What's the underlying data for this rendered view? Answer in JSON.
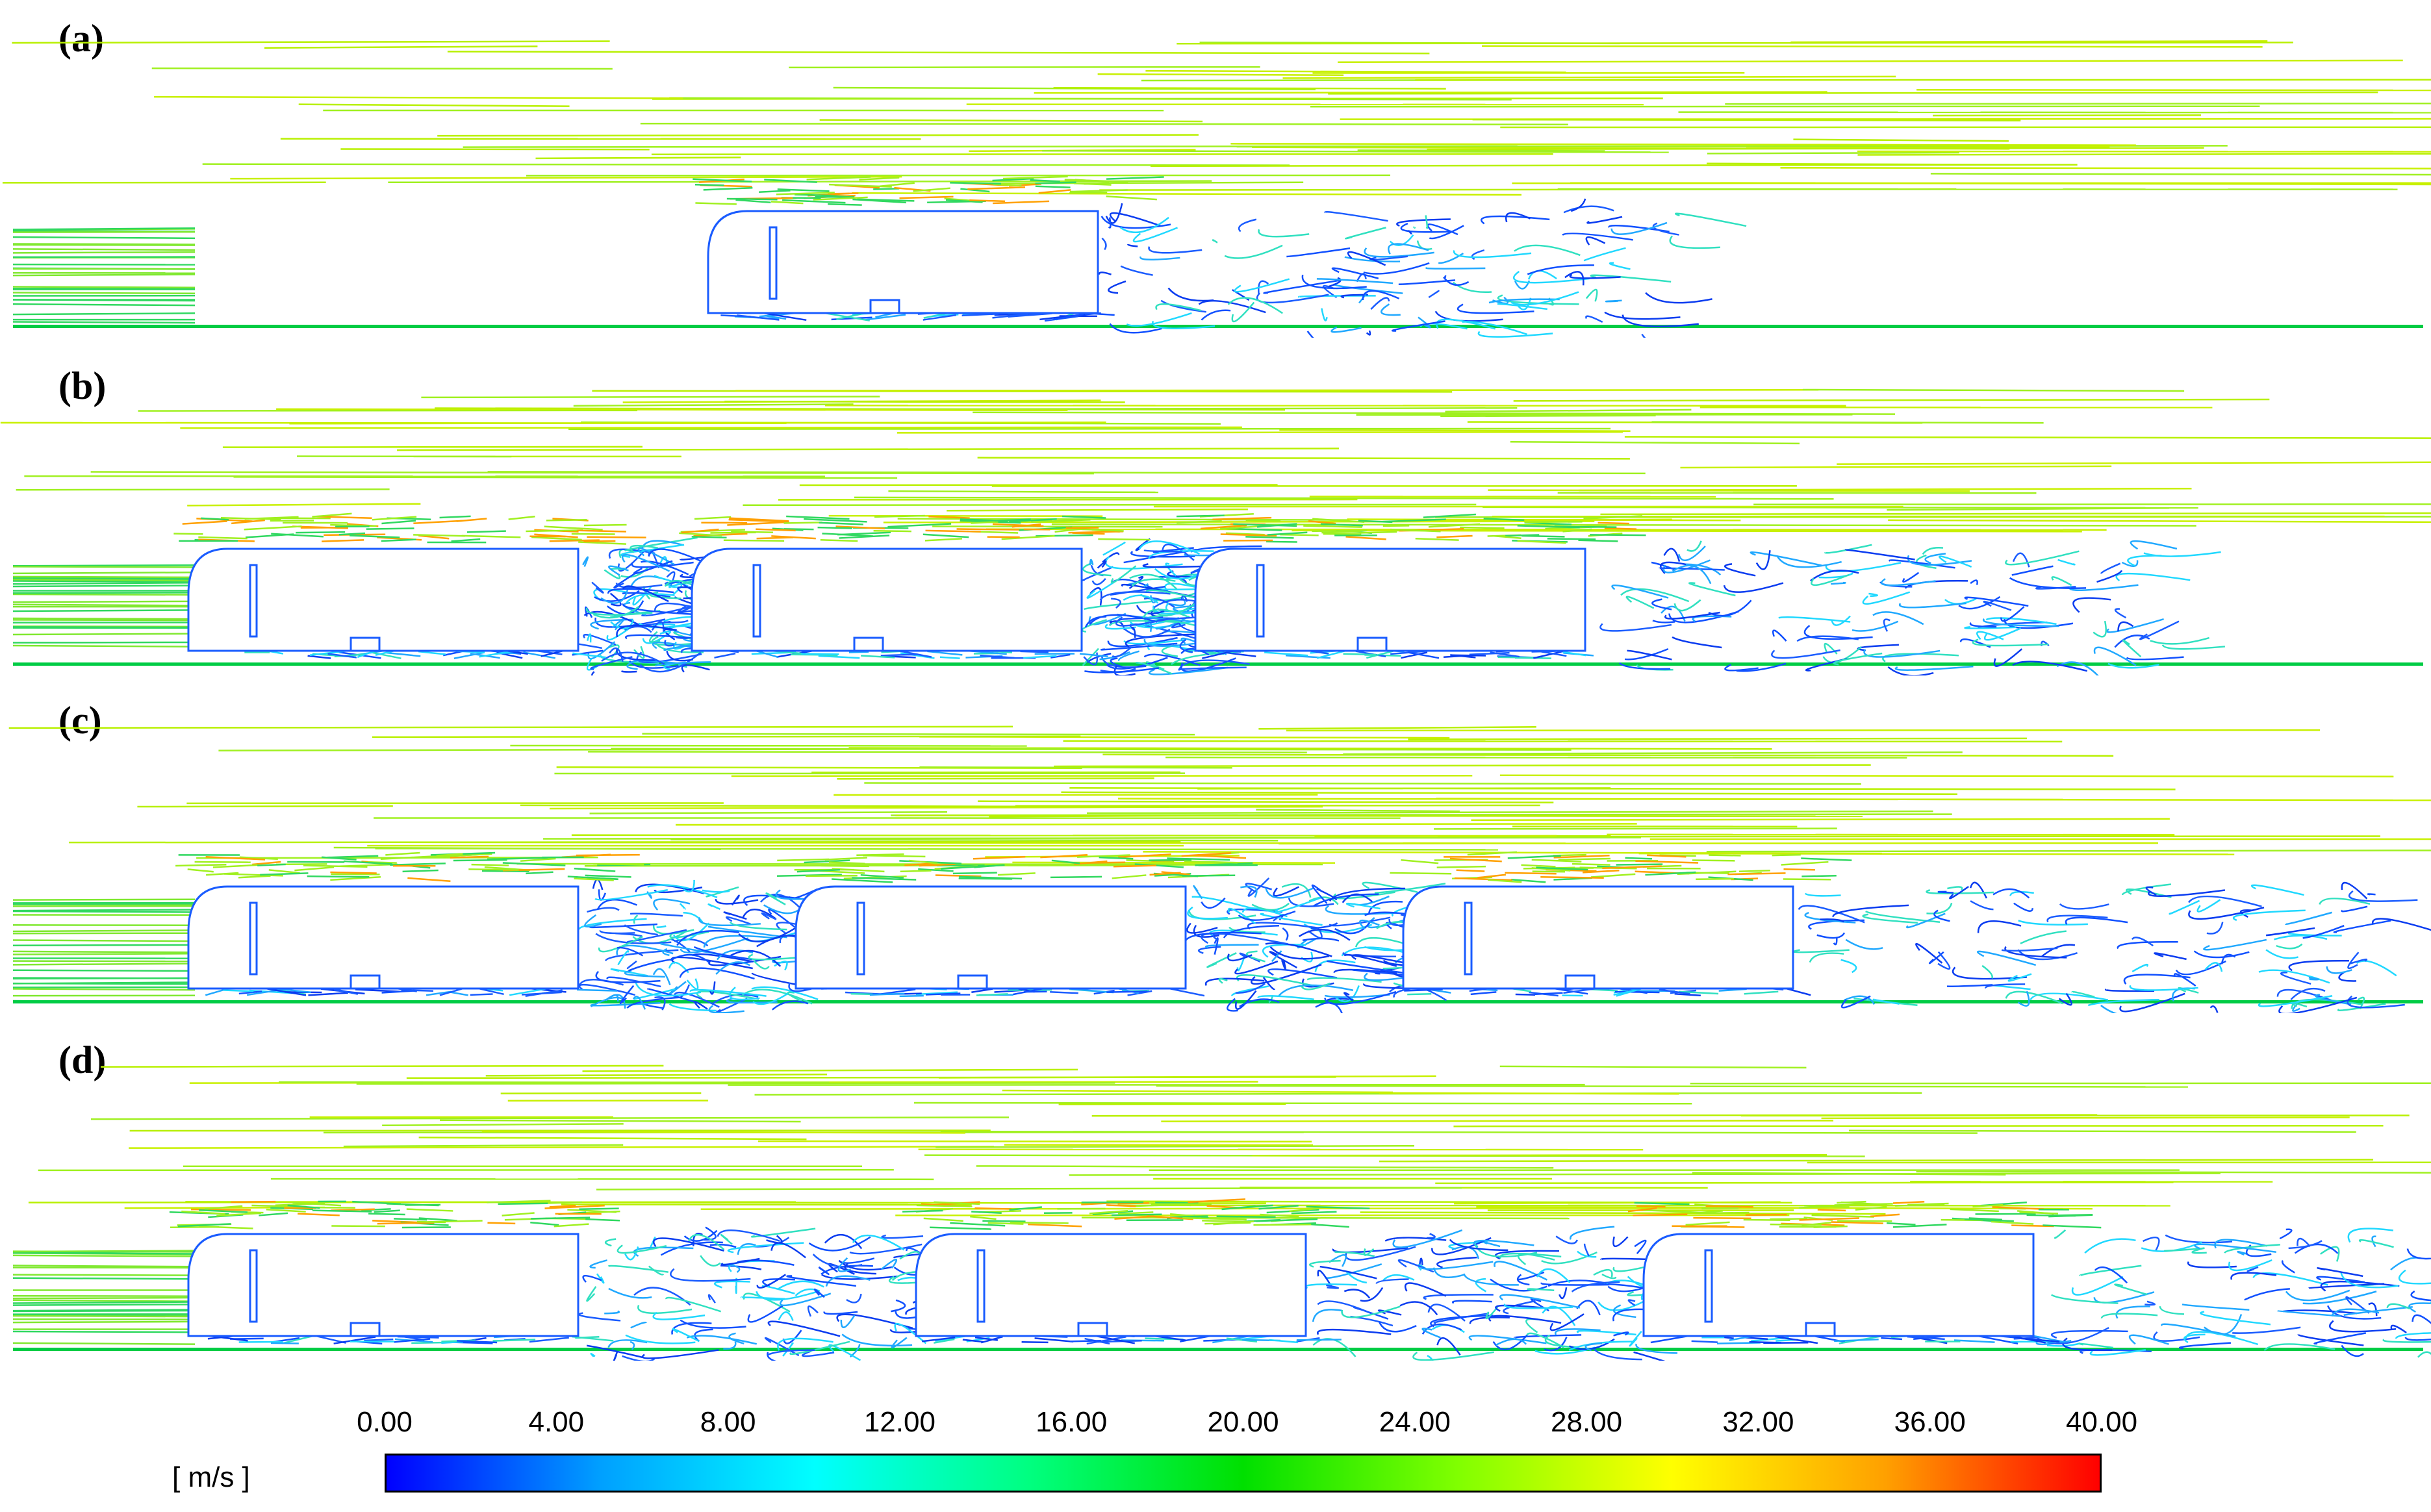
{
  "panels": [
    {
      "label": "(a)",
      "vehicles": 1
    },
    {
      "label": "(b)",
      "vehicles": 3
    },
    {
      "label": "(c)",
      "vehicles": 3
    },
    {
      "label": "(d)",
      "vehicles": 3
    }
  ],
  "legend": {
    "unit": "[ m/s ]",
    "ticks": [
      "0.00",
      "4.00",
      "8.00",
      "12.00",
      "16.00",
      "20.00",
      "24.00",
      "28.00",
      "32.00",
      "36.00",
      "40.00"
    ],
    "min": 0,
    "max": 40,
    "colors": [
      "#0000ff",
      "#00a0ff",
      "#00ffff",
      "#00ff80",
      "#00e000",
      "#80ff00",
      "#ffff00",
      "#ffa000",
      "#ff0000"
    ]
  },
  "colors": {
    "freestream": "#b8f000",
    "wake_low": "#1a5cff",
    "wake_mid": "#20d8ff",
    "shear_high": "#ffa000",
    "ground": "#00cc44"
  }
}
